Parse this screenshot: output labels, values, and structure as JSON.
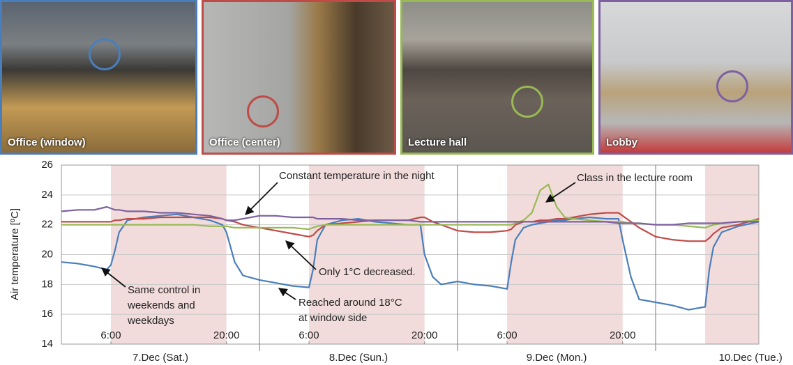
{
  "chart_data": {
    "type": "line",
    "ylabel": "Air temperature [ºC]",
    "x": [
      0,
      2,
      4,
      5.5,
      6,
      6.5,
      7,
      8,
      10,
      12,
      14,
      16,
      18,
      19.5,
      20,
      21,
      22,
      24,
      26,
      28,
      30,
      30.5,
      31,
      32,
      34,
      36,
      38,
      40,
      42,
      43.5,
      44,
      45,
      46,
      48,
      50,
      52,
      54,
      54.5,
      55,
      56,
      57,
      58,
      59,
      60,
      61,
      62,
      64,
      66,
      67.5,
      68,
      69,
      70,
      72,
      74,
      76,
      78,
      78.5,
      79,
      80,
      82,
      84.5
    ],
    "series": [
      {
        "name": "Office (window)",
        "color": "#4a7ebb",
        "values": [
          19.5,
          19.4,
          19.2,
          19.0,
          19.3,
          20.3,
          21.5,
          22.3,
          22.5,
          22.6,
          22.7,
          22.5,
          22.3,
          22.0,
          21.5,
          19.5,
          18.6,
          18.3,
          18.1,
          17.9,
          17.8,
          19.0,
          21.0,
          22.0,
          22.3,
          22.4,
          22.2,
          22.1,
          22.0,
          22.0,
          20.0,
          18.5,
          18.0,
          18.2,
          18.0,
          17.9,
          17.7,
          19.5,
          21.0,
          21.8,
          22.0,
          22.1,
          22.2,
          22.3,
          22.3,
          22.4,
          22.5,
          22.4,
          22.4,
          21.0,
          18.5,
          17.0,
          16.8,
          16.6,
          16.3,
          16.5,
          19.0,
          20.5,
          21.5,
          21.9,
          22.2
        ]
      },
      {
        "name": "Office (center)",
        "color": "#be4b48",
        "values": [
          22.2,
          22.2,
          22.2,
          22.2,
          22.2,
          22.3,
          22.3,
          22.4,
          22.4,
          22.5,
          22.5,
          22.5,
          22.5,
          22.4,
          22.3,
          22.2,
          22.0,
          21.8,
          21.6,
          21.4,
          21.2,
          21.3,
          21.6,
          22.0,
          22.1,
          22.2,
          22.3,
          22.3,
          22.3,
          22.5,
          22.5,
          22.2,
          22.0,
          21.6,
          21.5,
          21.5,
          21.6,
          21.7,
          22.0,
          22.2,
          22.2,
          22.3,
          22.3,
          22.4,
          22.4,
          22.5,
          22.7,
          22.8,
          22.8,
          22.6,
          22.2,
          21.8,
          21.2,
          21.0,
          20.9,
          20.9,
          21.1,
          21.4,
          21.8,
          22.0,
          22.4
        ]
      },
      {
        "name": "Lecture hall",
        "color": "#98b954",
        "values": [
          22.0,
          22.0,
          22.0,
          22.0,
          22.0,
          22.0,
          22.0,
          22.0,
          22.0,
          22.0,
          22.0,
          22.0,
          21.9,
          21.9,
          21.9,
          21.8,
          21.8,
          21.8,
          21.8,
          21.8,
          21.7,
          21.8,
          21.9,
          22.0,
          22.0,
          22.0,
          22.0,
          22.0,
          22.0,
          22.0,
          22.0,
          22.0,
          22.0,
          22.0,
          22.0,
          22.0,
          22.0,
          22.0,
          22.1,
          22.3,
          22.8,
          24.3,
          24.7,
          23.2,
          22.5,
          22.4,
          22.3,
          22.2,
          22.2,
          22.2,
          22.1,
          22.1,
          22.0,
          22.0,
          21.9,
          21.8,
          21.9,
          22.0,
          22.1,
          22.2,
          22.3
        ]
      },
      {
        "name": "Lobby",
        "color": "#7d60a0",
        "values": [
          22.9,
          23.0,
          23.0,
          23.2,
          23.1,
          23.0,
          23.0,
          22.9,
          22.9,
          22.8,
          22.8,
          22.7,
          22.6,
          22.4,
          22.3,
          22.3,
          22.4,
          22.6,
          22.6,
          22.5,
          22.5,
          22.5,
          22.4,
          22.4,
          22.4,
          22.3,
          22.3,
          22.3,
          22.3,
          22.2,
          22.2,
          22.2,
          22.2,
          22.2,
          22.2,
          22.2,
          22.2,
          22.2,
          22.2,
          22.2,
          22.2,
          22.2,
          22.2,
          22.2,
          22.2,
          22.2,
          22.2,
          22.2,
          22.1,
          22.1,
          22.1,
          22.1,
          22.0,
          22.0,
          22.1,
          22.1,
          22.1,
          22.1,
          22.1,
          22.2,
          22.2
        ]
      }
    ],
    "xlim": [
      0,
      84.5
    ],
    "xticks": [
      {
        "value": 6,
        "label": "6:00"
      },
      {
        "value": 20,
        "label": "20:00"
      },
      {
        "value": 30,
        "label": "6:00"
      },
      {
        "value": 44,
        "label": "20:00"
      },
      {
        "value": 54,
        "label": "6:00"
      },
      {
        "value": 68,
        "label": "20:00"
      }
    ],
    "day_boundaries": [
      24,
      48,
      72
    ],
    "day_labels": [
      {
        "value": 12,
        "label": "7.Dec (Sat.)"
      },
      {
        "value": 36,
        "label": "8.Dec (Sun.)"
      },
      {
        "value": 60,
        "label": "9.Dec (Mon.)"
      },
      {
        "value": 83.5,
        "label": "10.Dec (Tue.)"
      }
    ],
    "shaded_periods": [
      [
        6,
        20
      ],
      [
        30,
        44
      ],
      [
        54,
        68
      ],
      [
        78,
        84.5
      ]
    ],
    "shade_color": "#f2dcdb",
    "ylim": [
      14,
      26
    ],
    "yticks": [
      14,
      16,
      18,
      20,
      22,
      24,
      26
    ],
    "grid": true,
    "annotations": [
      {
        "lines": [
          "Constant temperature in the night"
        ]
      },
      {
        "lines": [
          "Class in the lecture room"
        ]
      },
      {
        "lines": [
          "Only 1°C decreased."
        ]
      },
      {
        "lines": [
          "Same control in",
          "weekends and",
          "weekdays"
        ]
      },
      {
        "lines": [
          "Reached around 18°C",
          "at window side"
        ]
      }
    ]
  }
}
